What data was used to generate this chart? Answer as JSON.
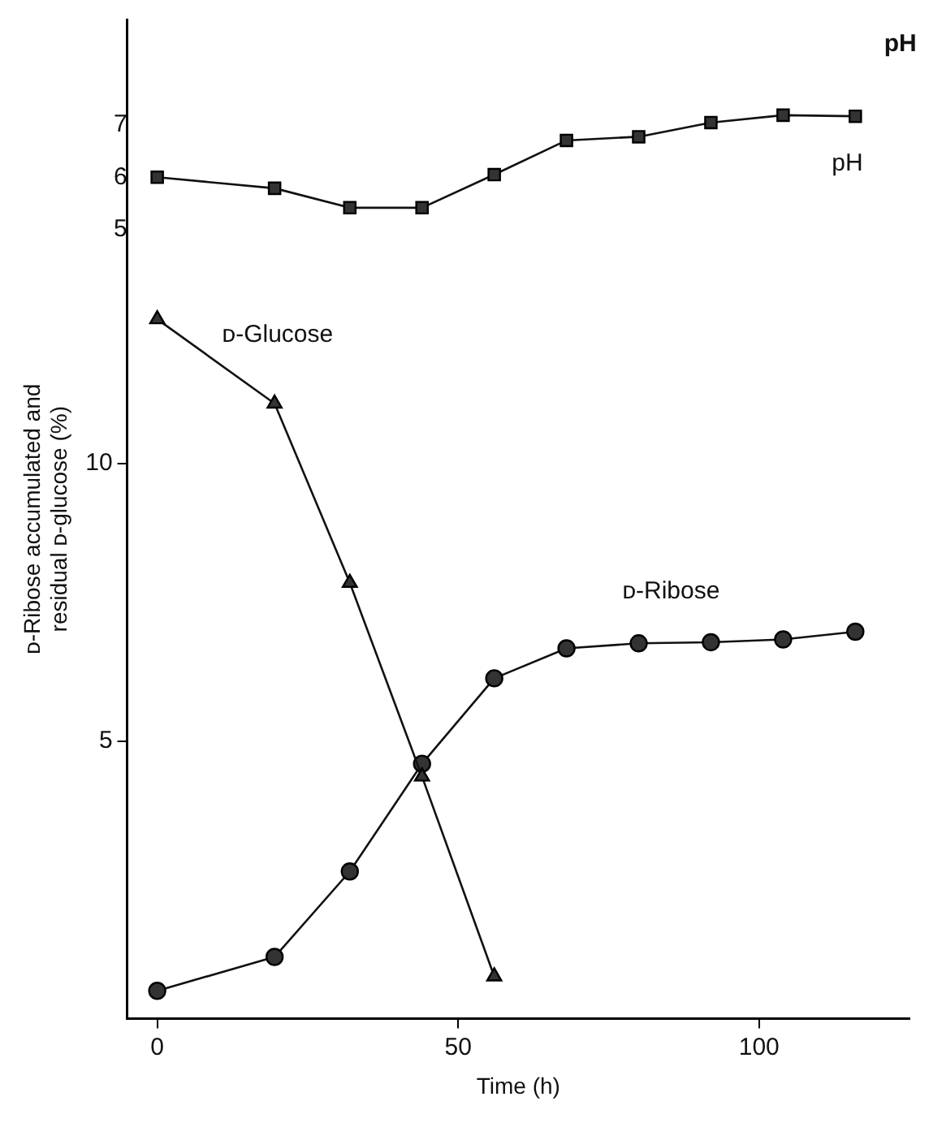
{
  "chart_data": {
    "type": "line",
    "xlabel": "Time (h)",
    "ylabel": "ᴅ-Ribose accumulated and\nresidual ᴅ-glucose (%)",
    "y2label": "pH",
    "xlim": [
      -5,
      125
    ],
    "xticks": [
      0,
      50,
      100
    ],
    "ylim": [
      0,
      18
    ],
    "yticks": [
      5,
      10
    ],
    "y2lim": [
      -10,
      9
    ],
    "y2ticks": [
      5,
      6,
      7
    ],
    "grid": false,
    "legend": false,
    "series": [
      {
        "name": "pH",
        "axis": "y2",
        "marker": "square",
        "color": "#333333",
        "x": [
          0,
          19.5,
          32,
          44,
          56,
          68,
          80,
          92,
          104,
          116
        ],
        "values": [
          6.0,
          5.79,
          5.42,
          5.42,
          6.05,
          6.7,
          6.77,
          7.04,
          7.18,
          7.16
        ]
      },
      {
        "name": "ᴅ-Glucose",
        "marker": "triangle",
        "color": "#333333",
        "x": [
          0,
          19.5,
          32,
          44,
          56
        ],
        "values": [
          12.6,
          11.08,
          7.85,
          4.36,
          0.76
        ]
      },
      {
        "name": "ᴅ-Ribose",
        "marker": "circle",
        "color": "#333333",
        "x": [
          0,
          19.5,
          32,
          44,
          56,
          68,
          80,
          92,
          104,
          116
        ],
        "values": [
          0.5,
          1.11,
          2.65,
          4.59,
          6.13,
          6.67,
          6.76,
          6.78,
          6.83,
          6.97
        ]
      }
    ]
  }
}
